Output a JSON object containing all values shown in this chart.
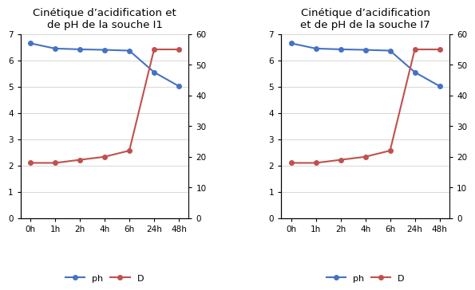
{
  "chart1": {
    "title": "Cinétique d’acidification et\nde pH de la souche I1",
    "x_labels": [
      "0h",
      "1h",
      "2h",
      "4h",
      "6h",
      "24h",
      "48h"
    ],
    "ph": [
      6.65,
      6.45,
      6.42,
      6.4,
      6.37,
      5.55,
      5.02
    ],
    "D": [
      18,
      18,
      19,
      20,
      22,
      55,
      55
    ],
    "ph_color": "#4472C4",
    "D_color": "#C0504D",
    "ylim_left": [
      0,
      7
    ],
    "ylim_right": [
      0,
      60
    ],
    "yticks_left": [
      0,
      1,
      2,
      3,
      4,
      5,
      6,
      7
    ],
    "yticks_right": [
      0,
      10,
      20,
      30,
      40,
      50,
      60
    ]
  },
  "chart2": {
    "title": "Cinétique d’acidification\net de pH de la souche I7",
    "x_labels": [
      "0h",
      "1h",
      "2h",
      "4h",
      "6h",
      "24h",
      "48h"
    ],
    "ph": [
      6.65,
      6.45,
      6.42,
      6.4,
      6.37,
      5.55,
      5.02
    ],
    "D": [
      18,
      18,
      19,
      20,
      22,
      55,
      55
    ],
    "ph_color": "#4472C4",
    "D_color": "#C0504D",
    "ylim_left": [
      0,
      7
    ],
    "ylim_right": [
      0,
      60
    ],
    "yticks_left": [
      0,
      1,
      2,
      3,
      4,
      5,
      6,
      7
    ],
    "yticks_right": [
      0,
      10,
      20,
      30,
      40,
      50,
      60
    ]
  },
  "bg_color": "#ffffff",
  "legend_ph": "ph",
  "legend_D": "D",
  "marker": "o",
  "markersize": 4,
  "linewidth": 1.5,
  "title_fontsize": 9.5,
  "tick_fontsize": 7.5,
  "legend_fontsize": 8
}
